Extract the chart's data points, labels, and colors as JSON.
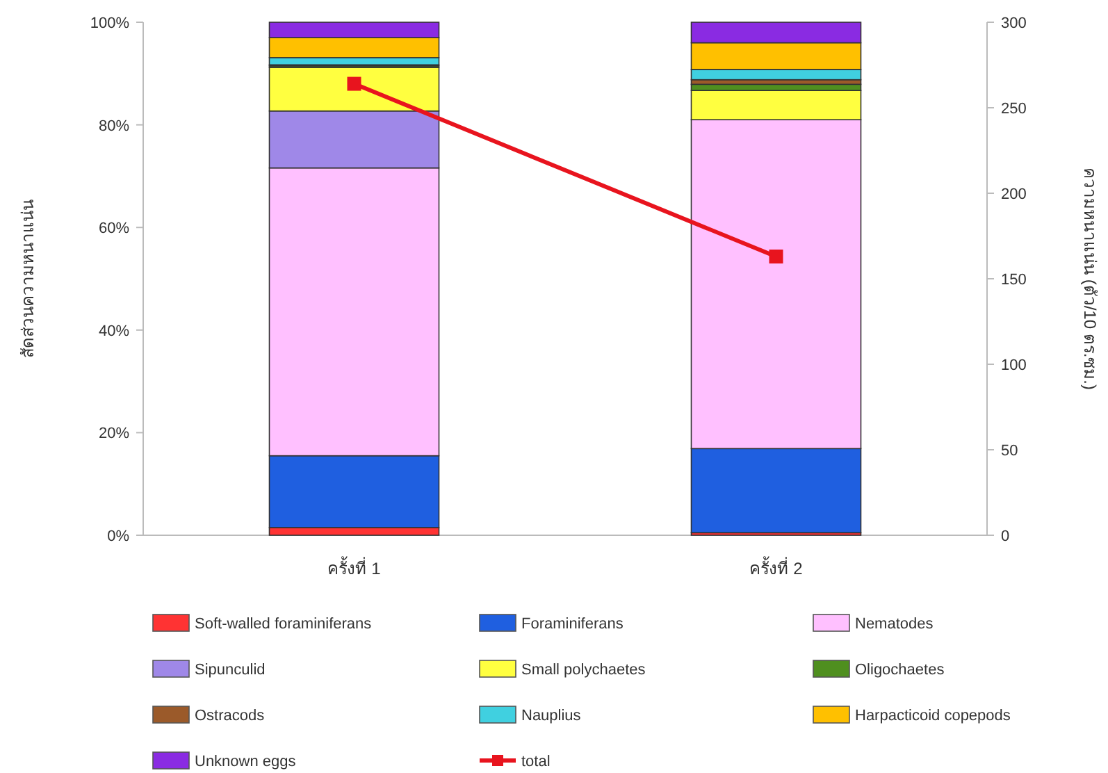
{
  "chart_data": {
    "type": "bar",
    "stacked": true,
    "categories": [
      "ครั้งที่ 1",
      "ครั้งที่ 2"
    ],
    "ylabel": "สัดส่วนความหนาแน่น",
    "y2label": "ความหนาแน่น (ตัว/10 ตร.ซม.)",
    "ylim": [
      0,
      100
    ],
    "yticks": [
      {
        "value": 0,
        "label": "0%"
      },
      {
        "value": 20,
        "label": "20%"
      },
      {
        "value": 40,
        "label": "40%"
      },
      {
        "value": 60,
        "label": "60%"
      },
      {
        "value": 80,
        "label": "80%"
      },
      {
        "value": 100,
        "label": "100%"
      }
    ],
    "y2lim": [
      0,
      300
    ],
    "y2ticks": [
      0,
      50,
      100,
      150,
      200,
      250,
      300
    ],
    "legend": "bottom",
    "series": [
      {
        "name": "Soft-walled foraminiferans",
        "color": "#ff3333",
        "values": [
          1.5,
          0.5
        ]
      },
      {
        "name": "Foraminiferans",
        "color": "#1f5fe0",
        "values": [
          14.0,
          16.4
        ]
      },
      {
        "name": "Nematodes",
        "color": "#ffc0ff",
        "values": [
          56.1,
          64.1
        ]
      },
      {
        "name": "Sipunculid",
        "color": "#9f88e8",
        "values": [
          11.1,
          0
        ]
      },
      {
        "name": "Small polychaetes",
        "color": "#ffff40",
        "values": [
          8.5,
          5.7
        ]
      },
      {
        "name": "Oligochaetes",
        "color": "#4f8f1f",
        "values": [
          0.3,
          1.2
        ]
      },
      {
        "name": "Ostracods",
        "color": "#9b5a2a",
        "values": [
          0.2,
          0.9
        ]
      },
      {
        "name": "Nauplius",
        "color": "#40d0e0",
        "values": [
          1.4,
          2.0
        ]
      },
      {
        "name": "Harpacticoid copepods",
        "color": "#ffc000",
        "values": [
          3.9,
          5.2
        ]
      },
      {
        "name": "Unknown eggs",
        "color": "#8a2be2",
        "values": [
          3.0,
          4.0
        ]
      },
      {
        "name": "total",
        "color": "#e8141e",
        "type": "line",
        "axis": "y2",
        "marker": "square",
        "values": [
          264,
          163
        ]
      }
    ]
  }
}
